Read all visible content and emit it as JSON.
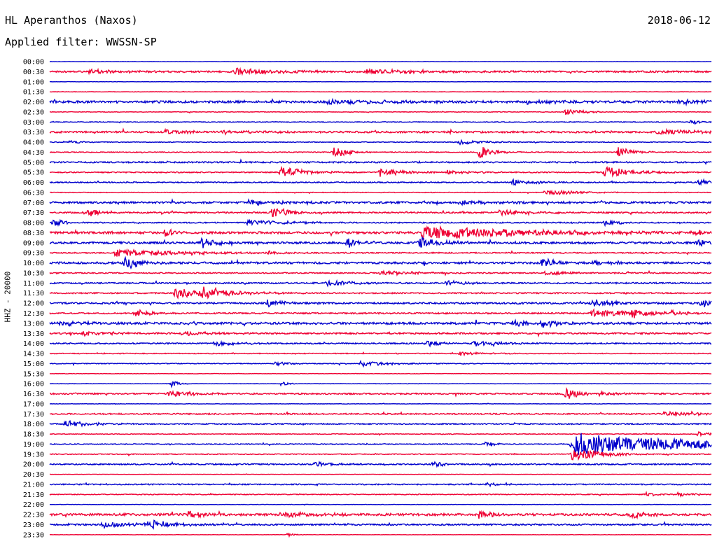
{
  "header": {
    "station": "HL Aperanthos (Naxos)",
    "date": "2018-06-12",
    "filter": "Applied filter: WWSSN-SP"
  },
  "chart_data": {
    "type": "line",
    "title": "HL Aperanthos (Naxos)",
    "ylabel": "HHZ - 20000",
    "trace_colors": [
      "#0000cc",
      "#ee0033"
    ],
    "rows": [
      {
        "label": "00:00",
        "noise": 0.2,
        "events": []
      },
      {
        "label": "00:30",
        "noise": 1.2,
        "events": [
          [
            0.28,
            5,
            60,
            2.5
          ],
          [
            0.48,
            4,
            80,
            3
          ],
          [
            0.06,
            3,
            50,
            2
          ]
        ]
      },
      {
        "label": "01:00",
        "noise": 0.2,
        "events": []
      },
      {
        "label": "01:30",
        "noise": 0.3,
        "events": []
      },
      {
        "label": "02:00",
        "noise": 1.5,
        "events": [
          [
            0.42,
            3,
            100,
            2.5
          ],
          [
            0.95,
            4,
            30,
            2.5
          ],
          [
            0.72,
            3,
            60,
            2
          ]
        ]
      },
      {
        "label": "02:30",
        "noise": 0.4,
        "events": [
          [
            0.78,
            4,
            30,
            2.5
          ]
        ]
      },
      {
        "label": "03:00",
        "noise": 0.5,
        "events": [
          [
            0.97,
            3,
            20,
            2
          ]
        ]
      },
      {
        "label": "03:30",
        "noise": 1.2,
        "events": [
          [
            0.175,
            4,
            30,
            3
          ],
          [
            0.26,
            3,
            40,
            2.5
          ],
          [
            0.92,
            4,
            50,
            3
          ]
        ]
      },
      {
        "label": "04:00",
        "noise": 0.5,
        "events": [
          [
            0.62,
            3,
            40,
            2.5
          ],
          [
            0.03,
            2,
            20,
            2
          ]
        ]
      },
      {
        "label": "04:30",
        "noise": 0.6,
        "events": [
          [
            0.43,
            9,
            20,
            2.5
          ],
          [
            0.65,
            9,
            20,
            2.5
          ],
          [
            0.86,
            8,
            20,
            2.5
          ]
        ]
      },
      {
        "label": "05:00",
        "noise": 1.0,
        "events": []
      },
      {
        "label": "05:30",
        "noise": 0.8,
        "events": [
          [
            0.35,
            9,
            30,
            3
          ],
          [
            0.5,
            7,
            30,
            3
          ],
          [
            0.84,
            8,
            40,
            3
          ],
          [
            0.6,
            3,
            40,
            2
          ]
        ]
      },
      {
        "label": "06:00",
        "noise": 0.8,
        "events": [
          [
            0.7,
            5,
            30,
            2.5
          ],
          [
            0.98,
            4,
            40,
            2.5
          ]
        ]
      },
      {
        "label": "06:30",
        "noise": 0.5,
        "events": [
          [
            0.75,
            4,
            40,
            3
          ]
        ]
      },
      {
        "label": "07:00",
        "noise": 1.3,
        "events": [
          [
            0.3,
            4,
            50,
            3
          ],
          [
            0.62,
            3,
            60,
            2.5
          ]
        ]
      },
      {
        "label": "07:30",
        "noise": 1.0,
        "events": [
          [
            0.055,
            7,
            20,
            2.5
          ],
          [
            0.335,
            9,
            25,
            2.5
          ],
          [
            0.68,
            4,
            40,
            2.5
          ]
        ]
      },
      {
        "label": "08:00",
        "noise": 0.8,
        "events": [
          [
            0.005,
            6,
            15,
            2.5
          ],
          [
            0.3,
            4,
            60,
            2.5
          ],
          [
            0.84,
            4,
            20,
            2.5
          ]
        ]
      },
      {
        "label": "08:30",
        "noise": 1.5,
        "events": [
          [
            0.175,
            7,
            15,
            2.5
          ],
          [
            0.565,
            10,
            150,
            3.5
          ],
          [
            0.97,
            3,
            40,
            2
          ]
        ]
      },
      {
        "label": "09:00",
        "noise": 1.4,
        "events": [
          [
            0.23,
            8,
            20,
            2.5
          ],
          [
            0.45,
            7,
            20,
            2.5
          ],
          [
            0.56,
            8,
            30,
            3
          ],
          [
            0.98,
            5,
            30,
            2.5
          ]
        ]
      },
      {
        "label": "09:30",
        "noise": 0.8,
        "events": [
          [
            0.1,
            6,
            90,
            3
          ],
          [
            0.33,
            3,
            20,
            2
          ]
        ]
      },
      {
        "label": "10:00",
        "noise": 1.4,
        "events": [
          [
            0.115,
            10,
            20,
            2.5
          ],
          [
            0.745,
            7,
            20,
            2.5
          ],
          [
            0.82,
            4,
            20,
            2
          ]
        ]
      },
      {
        "label": "10:30",
        "noise": 0.8,
        "events": [
          [
            0.5,
            3,
            60,
            2.5
          ],
          [
            0.75,
            3,
            40,
            2
          ]
        ]
      },
      {
        "label": "11:00",
        "noise": 1.0,
        "events": [
          [
            0.42,
            4,
            40,
            2.5
          ],
          [
            0.6,
            5,
            20,
            2.5
          ]
        ]
      },
      {
        "label": "11:30",
        "noise": 0.9,
        "events": [
          [
            0.19,
            7,
            70,
            3
          ],
          [
            0.23,
            9,
            30,
            3
          ]
        ]
      },
      {
        "label": "12:00",
        "noise": 1.2,
        "events": [
          [
            0.33,
            6,
            20,
            2.5
          ],
          [
            0.82,
            5,
            40,
            2.5
          ],
          [
            0.985,
            5,
            40,
            2.5
          ]
        ]
      },
      {
        "label": "12:30",
        "noise": 1.0,
        "events": [
          [
            0.13,
            5,
            20,
            2.5
          ],
          [
            0.82,
            6,
            60,
            3
          ],
          [
            0.88,
            7,
            20,
            2.5
          ],
          [
            0.94,
            3,
            20,
            2
          ]
        ]
      },
      {
        "label": "13:00",
        "noise": 1.5,
        "events": [
          [
            0.015,
            4,
            30,
            2.5
          ],
          [
            0.7,
            5,
            30,
            2.5
          ],
          [
            0.745,
            6,
            20,
            2.5
          ]
        ]
      },
      {
        "label": "13:30",
        "noise": 1.1,
        "events": [
          [
            0.05,
            3,
            50,
            2.5
          ],
          [
            0.2,
            3,
            40,
            2
          ]
        ]
      },
      {
        "label": "14:00",
        "noise": 0.9,
        "events": [
          [
            0.25,
            4,
            30,
            2.5
          ],
          [
            0.57,
            5,
            20,
            2.5
          ],
          [
            0.64,
            4,
            40,
            2.5
          ]
        ]
      },
      {
        "label": "14:30",
        "noise": 0.6,
        "events": [
          [
            0.62,
            3,
            30,
            2
          ]
        ]
      },
      {
        "label": "15:00",
        "noise": 0.6,
        "events": [
          [
            0.47,
            4,
            40,
            2.5
          ],
          [
            0.34,
            3,
            20,
            2
          ]
        ]
      },
      {
        "label": "15:30",
        "noise": 0.3,
        "events": []
      },
      {
        "label": "16:00",
        "noise": 0.3,
        "events": [
          [
            0.185,
            5,
            10,
            2.5
          ],
          [
            0.35,
            3,
            10,
            2
          ]
        ]
      },
      {
        "label": "16:30",
        "noise": 1.0,
        "events": [
          [
            0.18,
            4,
            40,
            2.5
          ],
          [
            0.78,
            11,
            15,
            2.5
          ],
          [
            0.83,
            3,
            30,
            2
          ]
        ]
      },
      {
        "label": "17:00",
        "noise": 0.3,
        "events": []
      },
      {
        "label": "17:30",
        "noise": 0.9,
        "events": [
          [
            0.93,
            4,
            30,
            2.5
          ],
          [
            0.97,
            3,
            20,
            2
          ]
        ]
      },
      {
        "label": "18:00",
        "noise": 0.8,
        "events": [
          [
            0.025,
            5,
            40,
            3
          ]
        ]
      },
      {
        "label": "18:30",
        "noise": 0.5,
        "events": [
          [
            0.98,
            3,
            20,
            2
          ]
        ]
      },
      {
        "label": "19:00",
        "noise": 0.6,
        "events": [
          [
            0.66,
            5,
            10,
            2.5
          ],
          [
            0.79,
            15,
            200,
            3
          ],
          [
            0.8,
            18,
            30,
            2.5
          ],
          [
            0.91,
            3,
            20,
            2
          ]
        ]
      },
      {
        "label": "19:30",
        "noise": 0.6,
        "events": [
          [
            0.79,
            10,
            40,
            2.5
          ]
        ]
      },
      {
        "label": "20:00",
        "noise": 0.9,
        "events": [
          [
            0.4,
            3,
            30,
            2.5
          ],
          [
            0.58,
            4,
            15,
            2.5
          ]
        ]
      },
      {
        "label": "20:30",
        "noise": 0.2,
        "events": []
      },
      {
        "label": "21:00",
        "noise": 0.8,
        "events": [
          [
            0.66,
            3,
            20,
            2
          ]
        ]
      },
      {
        "label": "21:30",
        "noise": 0.6,
        "events": [
          [
            0.9,
            3,
            20,
            2
          ],
          [
            0.95,
            3,
            20,
            2
          ]
        ]
      },
      {
        "label": "22:00",
        "noise": 0.3,
        "events": []
      },
      {
        "label": "22:30",
        "noise": 1.6,
        "events": [
          [
            0.21,
            5,
            20,
            2.5
          ],
          [
            0.65,
            6,
            20,
            2.5
          ],
          [
            0.88,
            6,
            20,
            2.5
          ],
          [
            0.35,
            3,
            60,
            2.5
          ]
        ]
      },
      {
        "label": "23:00",
        "noise": 1.1,
        "events": [
          [
            0.08,
            4,
            60,
            2.5
          ],
          [
            0.15,
            5,
            40,
            2.5
          ]
        ]
      },
      {
        "label": "23:30",
        "noise": 0.2,
        "events": [
          [
            0.36,
            3,
            10,
            2
          ]
        ]
      }
    ]
  }
}
